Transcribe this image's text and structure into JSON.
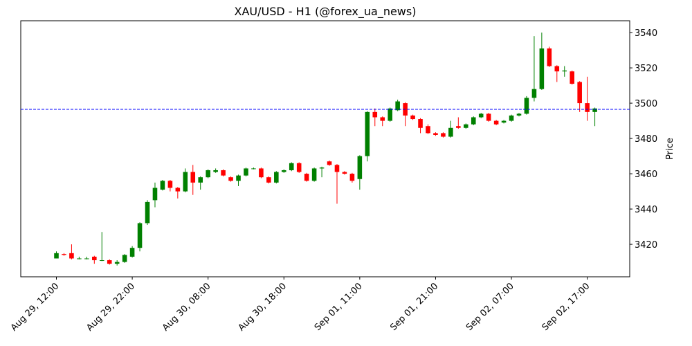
{
  "chart_data": {
    "type": "candlestick",
    "title": "XAU/USD - H1 (@forex_ua_news)",
    "y_label": "Price",
    "xlim": [
      -4.7,
      75.6
    ],
    "xticks": [
      {
        "value": 0,
        "label": "Aug 29, 12:00"
      },
      {
        "value": 10,
        "label": "Aug 29, 22:00"
      },
      {
        "value": 20,
        "label": "Aug 30, 08:00"
      },
      {
        "value": 30,
        "label": "Aug 30, 18:00"
      },
      {
        "value": 40,
        "label": "Sep 01, 11:00"
      },
      {
        "value": 50,
        "label": "Sep 01, 21:00"
      },
      {
        "value": 60,
        "label": "Sep 02, 07:00"
      },
      {
        "value": 70,
        "label": "Sep 02, 17:00"
      }
    ],
    "ylim": [
      3401.6,
      3546.7
    ],
    "yticks": [
      3420,
      3440,
      3460,
      3480,
      3500,
      3520,
      3540
    ],
    "up_color": "#008000",
    "down_color": "#ff0000",
    "hline": {
      "value": 3496.5,
      "color": "#0000ff"
    },
    "open": [
      3412,
      3414.5,
      3415,
      3412,
      3412,
      3413,
      3411,
      3411,
      3409,
      3410,
      3413,
      3418,
      3432,
      3445,
      3451,
      3456,
      3452,
      3450,
      3461,
      3455,
      3458,
      3461,
      3462,
      3458,
      3456,
      3459,
      3463,
      3463,
      3458,
      3455,
      3461,
      3462,
      3466,
      3460,
      3456,
      3463,
      3467,
      3465,
      3461,
      3460,
      3457,
      3470,
      3495,
      3492,
      3490,
      3496,
      3500,
      3493,
      3491,
      3487,
      3483,
      3483,
      3481,
      3487,
      3486,
      3488,
      3492,
      3494,
      3490,
      3489,
      3490,
      3493,
      3494,
      3503,
      3508,
      3531,
      3521,
      3518,
      3518,
      3512,
      3500,
      3495
    ],
    "high": [
      3416,
      3415,
      3420,
      3413,
      3413,
      3413.5,
      3427,
      3411.5,
      3411,
      3414.5,
      3419,
      3432.5,
      3445,
      3455,
      3456.5,
      3456.5,
      3452.5,
      3463,
      3465,
      3458.5,
      3462.5,
      3463,
      3462.5,
      3458.5,
      3459.5,
      3463.5,
      3463.5,
      3463.5,
      3458.5,
      3461.5,
      3462.5,
      3466.5,
      3466.5,
      3460.5,
      3463.5,
      3464,
      3467.5,
      3465.5,
      3461.5,
      3460.5,
      3470.5,
      3495.5,
      3497,
      3492.5,
      3497.5,
      3502,
      3500.5,
      3493.5,
      3491.5,
      3488,
      3483.5,
      3483.5,
      3490,
      3492,
      3488.5,
      3492.5,
      3494.5,
      3494.5,
      3490.5,
      3490.5,
      3493.5,
      3494.5,
      3504,
      3538,
      3540,
      3532,
      3521.5,
      3521,
      3518.5,
      3512.5,
      3515,
      3497.5
    ],
    "low": [
      3412,
      3413.5,
      3411.5,
      3411.5,
      3411.5,
      3409,
      3410.5,
      3408.5,
      3408,
      3409.5,
      3412.5,
      3416,
      3431,
      3441,
      3450.5,
      3450,
      3446,
      3449.5,
      3448,
      3451,
      3457.5,
      3460.5,
      3458.5,
      3455.5,
      3453,
      3458.5,
      3462.5,
      3457.5,
      3454.5,
      3454.5,
      3460.5,
      3461.5,
      3460.5,
      3455.5,
      3455.5,
      3458,
      3464.5,
      3443,
      3459.5,
      3455,
      3451,
      3467,
      3487,
      3487,
      3489.5,
      3495.5,
      3487,
      3490.5,
      3483,
      3482.5,
      3481.5,
      3480.5,
      3480.5,
      3485.5,
      3485.5,
      3487.5,
      3491.5,
      3489.5,
      3487.5,
      3488.5,
      3489.5,
      3492.5,
      3493.5,
      3501,
      3507.5,
      3520.5,
      3512,
      3515,
      3510.5,
      3495,
      3490,
      3487
    ],
    "close": [
      3415,
      3414,
      3412,
      3412,
      3412,
      3411,
      3411,
      3409,
      3410,
      3414,
      3418,
      3432,
      3444,
      3452,
      3456,
      3452,
      3450,
      3461,
      3455,
      3458,
      3462,
      3462,
      3459,
      3456,
      3459,
      3463,
      3463,
      3458,
      3455,
      3461,
      3462,
      3466,
      3461,
      3456,
      3463,
      3463.5,
      3465,
      3461,
      3460,
      3456,
      3470,
      3495,
      3492,
      3490,
      3497,
      3501,
      3493,
      3491,
      3486,
      3483,
      3482,
      3481,
      3486,
      3486,
      3488,
      3492,
      3494,
      3490,
      3488,
      3490,
      3493,
      3494,
      3503,
      3508,
      3531,
      3521,
      3518,
      3518.5,
      3511,
      3500,
      3495,
      3497
    ]
  }
}
